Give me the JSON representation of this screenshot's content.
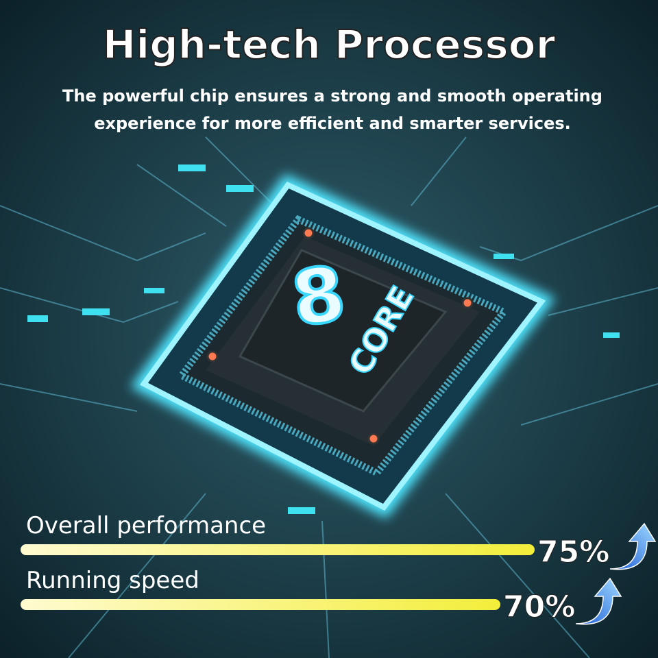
{
  "header": {
    "title": "High-tech Processor",
    "subtitle": [
      "The powerful chip ensures a strong and smooth operating",
      "experience for more efficient and smarter services."
    ]
  },
  "chip": {
    "count": "8",
    "label": "CORE"
  },
  "bars": [
    {
      "label": "Overall performance",
      "value": 75,
      "value_label": "75%"
    },
    {
      "label": "Running speed",
      "value": 70,
      "value_label": "70%"
    }
  ]
}
